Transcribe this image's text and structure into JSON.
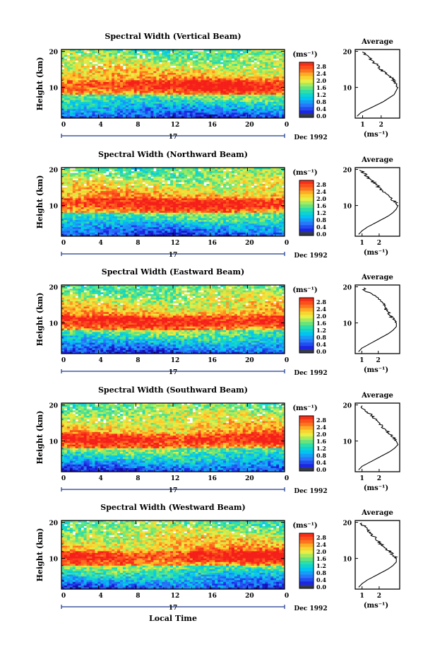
{
  "figure": {
    "xlabel": "Local Time",
    "date_label": "Dec 1992",
    "day_label": "17",
    "ylabel": "Height (km)",
    "unit_label": "(ms⁻¹)",
    "avg_xlabel": "(ms⁻¹)",
    "avg_title": "Average",
    "colorbar_ticks": [
      "2.8",
      "2.4",
      "2.0",
      "1.6",
      "1.2",
      "0.8",
      "0.4",
      "0.0"
    ],
    "x_ticks": [
      "0",
      "4",
      "8",
      "12",
      "16",
      "20",
      "0"
    ],
    "y_ticks": [
      "20",
      "10"
    ],
    "avg_x_ticks": [
      "1",
      "2"
    ],
    "colors": {
      "low": "#1e22c8",
      "mid": "#00cfe0",
      "mid2": "#ffe54a",
      "high": "#ff2a1a",
      "bar_bottom": "#333a4a",
      "axis_day": "#1f3a8f"
    }
  },
  "chart_data": [
    {
      "type": "heatmap",
      "title": "Spectral Width (Vertical Beam)",
      "xlim": [
        0,
        24
      ],
      "ylim": [
        1.5,
        20.5
      ],
      "xlabel": "Local Time",
      "ylabel": "Height (km)",
      "zlim": [
        0.0,
        2.8
      ],
      "avg_profile": {
        "height": [
          2,
          3,
          4,
          5,
          6,
          7,
          8,
          9,
          10,
          11,
          12,
          13,
          14,
          15,
          16,
          17,
          18,
          19,
          20
        ],
        "width": [
          0.7,
          0.9,
          1.3,
          1.7,
          2.1,
          2.4,
          2.7,
          2.8,
          2.9,
          2.8,
          2.7,
          2.5,
          2.2,
          2.0,
          1.8,
          1.6,
          1.4,
          1.2,
          1.0
        ],
        "xlim": [
          0.6,
          3.0
        ]
      }
    },
    {
      "type": "heatmap",
      "title": "Spectral Width (Northward Beam)",
      "xlim": [
        0,
        24
      ],
      "ylim": [
        1.5,
        20.5
      ],
      "xlabel": "Local Time",
      "ylabel": "Height (km)",
      "zlim": [
        0.0,
        2.8
      ],
      "avg_profile": {
        "height": [
          2,
          3,
          4,
          5,
          6,
          7,
          8,
          9,
          10,
          11,
          12,
          13,
          14,
          15,
          16,
          17,
          18,
          19,
          20
        ],
        "width": [
          0.8,
          1.0,
          1.3,
          1.7,
          2.1,
          2.5,
          2.8,
          3.0,
          3.1,
          2.9,
          2.7,
          2.5,
          2.2,
          2.0,
          1.8,
          1.5,
          1.3,
          1.1,
          0.9
        ],
        "xlim": [
          0.6,
          3.2
        ]
      }
    },
    {
      "type": "heatmap",
      "title": "Spectral Width (Eastward Beam)",
      "xlim": [
        0,
        24
      ],
      "ylim": [
        1.5,
        20.5
      ],
      "xlabel": "Local Time",
      "ylabel": "Height (km)",
      "zlim": [
        0.0,
        2.8
      ],
      "avg_profile": {
        "height": [
          2,
          3,
          4,
          5,
          6,
          7,
          8,
          9,
          10,
          11,
          12,
          13,
          14,
          15,
          16,
          17,
          18,
          19,
          20
        ],
        "width": [
          0.8,
          1.0,
          1.4,
          1.8,
          2.2,
          2.6,
          2.9,
          3.1,
          3.1,
          3.0,
          2.7,
          2.6,
          2.4,
          2.4,
          2.1,
          1.9,
          1.6,
          1.2,
          1.0
        ],
        "xlim": [
          0.6,
          3.3
        ]
      }
    },
    {
      "type": "heatmap",
      "title": "Spectral Width (Southward Beam)",
      "xlim": [
        0,
        24
      ],
      "ylim": [
        1.5,
        20.5
      ],
      "xlabel": "Local Time",
      "ylabel": "Height (km)",
      "zlim": [
        0.0,
        2.8
      ],
      "avg_profile": {
        "height": [
          2,
          3,
          4,
          5,
          6,
          7,
          8,
          9,
          10,
          11,
          12,
          13,
          14,
          15,
          16,
          17,
          18,
          19,
          20
        ],
        "width": [
          0.8,
          1.0,
          1.4,
          1.8,
          2.2,
          2.6,
          2.9,
          3.1,
          3.0,
          2.8,
          2.6,
          2.4,
          2.2,
          2.0,
          1.8,
          1.6,
          1.3,
          1.1,
          0.9
        ],
        "xlim": [
          0.6,
          3.2
        ]
      }
    },
    {
      "type": "heatmap",
      "title": "Spectral Width (Westward Beam)",
      "xlim": [
        0,
        24
      ],
      "ylim": [
        1.5,
        20.5
      ],
      "xlabel": "Local Time",
      "ylabel": "Height (km)",
      "zlim": [
        0.0,
        2.8
      ],
      "avg_profile": {
        "height": [
          2,
          3,
          4,
          5,
          6,
          7,
          8,
          9,
          10,
          11,
          12,
          13,
          14,
          15,
          16,
          17,
          18,
          19,
          20
        ],
        "width": [
          0.8,
          1.0,
          1.3,
          1.7,
          2.1,
          2.5,
          2.8,
          3.0,
          3.0,
          2.8,
          2.6,
          2.3,
          2.1,
          1.9,
          1.7,
          1.5,
          1.3,
          1.1,
          0.9
        ],
        "xlim": [
          0.6,
          3.2
        ]
      }
    }
  ]
}
